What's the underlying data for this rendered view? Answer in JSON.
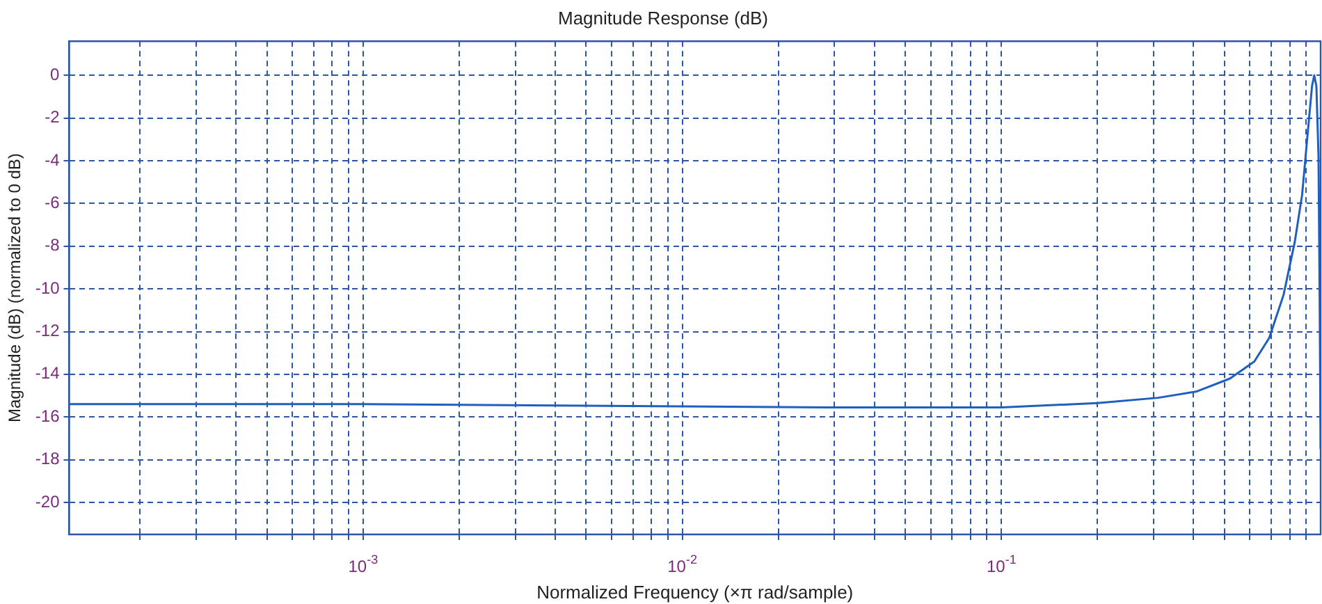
{
  "chart_data": {
    "type": "line",
    "title": "Magnitude Response (dB)",
    "xlabel": "Normalized Frequency (×π rad/sample)",
    "ylabel": "Magnitude (dB) (normalized to 0 dB)",
    "log": "x",
    "grid": true,
    "legend": false,
    "marker": "none",
    "line_style": "solid",
    "xlim": [
      0.00012,
      1
    ],
    "ylim": [
      -21.5,
      1.6
    ],
    "xticks": [
      {
        "value": 0.0002,
        "label": null
      },
      {
        "value": 0.0003,
        "label": null
      },
      {
        "value": 0.0004,
        "label": null
      },
      {
        "value": 0.0005,
        "label": null
      },
      {
        "value": 0.0006,
        "label": null
      },
      {
        "value": 0.0007,
        "label": null
      },
      {
        "value": 0.0008,
        "label": null
      },
      {
        "value": 0.0009,
        "label": null
      },
      {
        "value": 0.001,
        "label": "10$^{-3}$"
      },
      {
        "value": 0.002,
        "label": null
      },
      {
        "value": 0.003,
        "label": null
      },
      {
        "value": 0.004,
        "label": null
      },
      {
        "value": 0.005,
        "label": null
      },
      {
        "value": 0.006,
        "label": null
      },
      {
        "value": 0.007,
        "label": null
      },
      {
        "value": 0.008,
        "label": null
      },
      {
        "value": 0.009,
        "label": null
      },
      {
        "value": 0.01,
        "label": "10$^{-2}$"
      },
      {
        "value": 0.02,
        "label": null
      },
      {
        "value": 0.03,
        "label": null
      },
      {
        "value": 0.04,
        "label": null
      },
      {
        "value": 0.05,
        "label": null
      },
      {
        "value": 0.06,
        "label": null
      },
      {
        "value": 0.07,
        "label": null
      },
      {
        "value": 0.08,
        "label": null
      },
      {
        "value": 0.09,
        "label": null
      },
      {
        "value": 0.1,
        "label": "10$^{-1}$"
      },
      {
        "value": 0.2,
        "label": null
      },
      {
        "value": 0.3,
        "label": null
      },
      {
        "value": 0.4,
        "label": null
      },
      {
        "value": 0.5,
        "label": null
      },
      {
        "value": 0.6,
        "label": null
      },
      {
        "value": 0.7,
        "label": null
      },
      {
        "value": 0.8,
        "label": null
      },
      {
        "value": 0.9,
        "label": null
      }
    ],
    "yticks": [
      -20,
      -18,
      -16,
      -14,
      -12,
      -10,
      -8,
      -6,
      -4,
      -2,
      0
    ],
    "x": [
      0.00012,
      0.001,
      0.01,
      0.0285,
      0.1,
      0.2,
      0.31,
      0.41,
      0.52,
      0.62,
      0.69,
      0.765,
      0.83,
      0.875,
      0.91,
      0.94,
      0.955,
      0.97,
      0.985,
      0.993,
      1
    ],
    "series": [
      {
        "color": "#1f5fbf",
        "values": [
          -15.4,
          -15.4,
          -15.5,
          -15.55,
          -15.55,
          -15.35,
          -15.1,
          -14.8,
          -14.2,
          -13.4,
          -12.3,
          -10.3,
          -7.8,
          -5.6,
          -2.8,
          -0.5,
          0,
          -0.5,
          -3.8,
          -10.4,
          -17.5
        ]
      }
    ]
  }
}
